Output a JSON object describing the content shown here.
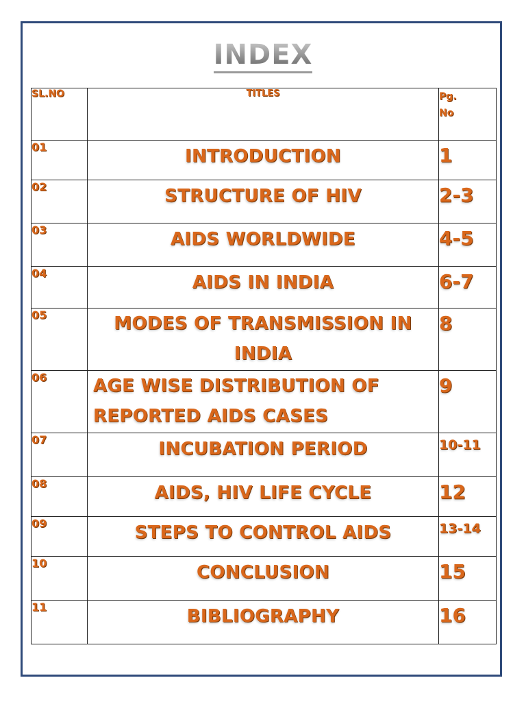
{
  "document": {
    "title": "INDEX",
    "headers": {
      "sl_no": "SL.NO",
      "titles": "TITLES",
      "pg_no_line1": "Pg.",
      "pg_no_line2": "No"
    },
    "rows": [
      {
        "sl": "01",
        "title": "INTRODUCTION",
        "page": "1"
      },
      {
        "sl": "02",
        "title": "STRUCTURE OF HIV",
        "page": "2-3"
      },
      {
        "sl": "03",
        "title": "AIDS WORLDWIDE",
        "page": "4-5"
      },
      {
        "sl": "04",
        "title": "AIDS IN INDIA",
        "page": "6-7"
      },
      {
        "sl": "05",
        "title": "MODES OF TRANSMISSION IN INDIA",
        "page": "8"
      },
      {
        "sl": "06",
        "title": "AGE WISE DISTRIBUTION OF REPORTED AIDS CASES",
        "page": "9"
      },
      {
        "sl": "07",
        "title": "INCUBATION PERIOD",
        "page": "10-11"
      },
      {
        "sl": "08",
        "title": "AIDS, HIV LIFE CYCLE",
        "page": "12"
      },
      {
        "sl": "09",
        "title": "STEPS TO CONTROL AIDS",
        "page": "13-14"
      },
      {
        "sl": "10",
        "title": "CONCLUSION",
        "page": "15"
      },
      {
        "sl": "11",
        "title": "BIBLIOGRAPHY",
        "page": "16"
      }
    ]
  },
  "colors": {
    "text_orange": "#d9671b",
    "frame_blue": "#2f4a7a",
    "title_gray": "#8a8a8a"
  }
}
